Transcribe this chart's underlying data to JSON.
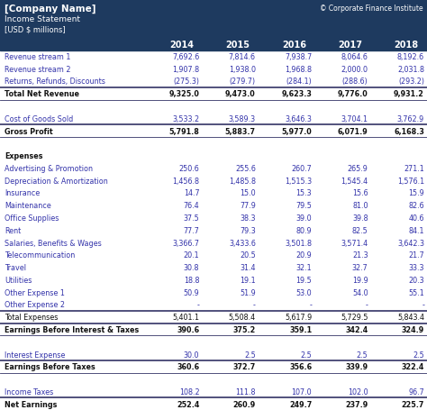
{
  "company_name": "[Company Name]",
  "doc_title": "Income Statement",
  "currency": "[USD $ millions]",
  "copyright": "© Corporate Finance Institute",
  "years": [
    "2014",
    "2015",
    "2016",
    "2017",
    "2018"
  ],
  "header_bg": "#1e3a5f",
  "blue_text": "#3333aa",
  "dark_text": "#111111",
  "line_color": "#333366",
  "rows": [
    {
      "label": "Revenue stream 1",
      "values": [
        "7,692.6",
        "7,814.6",
        "7,938.7",
        "8,064.6",
        "8,192.6"
      ],
      "style": "normal",
      "color": "blue"
    },
    {
      "label": "Revenue stream 2",
      "values": [
        "1,907.8",
        "1,938.0",
        "1,968.8",
        "2,000.0",
        "2,031.8"
      ],
      "style": "normal",
      "color": "blue"
    },
    {
      "label": "Returns, Refunds, Discounts",
      "values": [
        "(275.3)",
        "(279.7)",
        "(284.1)",
        "(288.6)",
        "(293.2)"
      ],
      "style": "normal",
      "color": "blue"
    },
    {
      "label": "Total Net Revenue",
      "values": [
        "9,325.0",
        "9,473.0",
        "9,623.3",
        "9,776.0",
        "9,931.2"
      ],
      "style": "bold_topbot",
      "color": "dark"
    },
    {
      "label": "",
      "values": [
        "",
        "",
        "",
        "",
        ""
      ],
      "style": "spacer",
      "color": "dark"
    },
    {
      "label": "Cost of Goods Sold",
      "values": [
        "3,533.2",
        "3,589.3",
        "3,646.3",
        "3,704.1",
        "3,762.9"
      ],
      "style": "normal",
      "color": "blue"
    },
    {
      "label": "Gross Profit",
      "values": [
        "5,791.8",
        "5,883.7",
        "5,977.0",
        "6,071.9",
        "6,168.3"
      ],
      "style": "bold_topbot",
      "color": "dark"
    },
    {
      "label": "",
      "values": [
        "",
        "",
        "",
        "",
        ""
      ],
      "style": "spacer",
      "color": "dark"
    },
    {
      "label": "Expenses",
      "values": [
        "",
        "",
        "",
        "",
        ""
      ],
      "style": "section_header",
      "color": "dark"
    },
    {
      "label": "Advertising & Promotion",
      "values": [
        "250.6",
        "255.6",
        "260.7",
        "265.9",
        "271.1"
      ],
      "style": "normal",
      "color": "blue"
    },
    {
      "label": "Depreciation & Amortization",
      "values": [
        "1,456.8",
        "1,485.8",
        "1,515.3",
        "1,545.4",
        "1,576.1"
      ],
      "style": "normal",
      "color": "blue"
    },
    {
      "label": "Insurance",
      "values": [
        "14.7",
        "15.0",
        "15.3",
        "15.6",
        "15.9"
      ],
      "style": "normal",
      "color": "blue"
    },
    {
      "label": "Maintenance",
      "values": [
        "76.4",
        "77.9",
        "79.5",
        "81.0",
        "82.6"
      ],
      "style": "normal",
      "color": "blue"
    },
    {
      "label": "Office Supplies",
      "values": [
        "37.5",
        "38.3",
        "39.0",
        "39.8",
        "40.6"
      ],
      "style": "normal",
      "color": "blue"
    },
    {
      "label": "Rent",
      "values": [
        "77.7",
        "79.3",
        "80.9",
        "82.5",
        "84.1"
      ],
      "style": "normal",
      "color": "blue"
    },
    {
      "label": "Salaries, Benefits & Wages",
      "values": [
        "3,366.7",
        "3,433.6",
        "3,501.8",
        "3,571.4",
        "3,642.3"
      ],
      "style": "normal",
      "color": "blue"
    },
    {
      "label": "Telecommunication",
      "values": [
        "20.1",
        "20.5",
        "20.9",
        "21.3",
        "21.7"
      ],
      "style": "normal",
      "color": "blue"
    },
    {
      "label": "Travel",
      "values": [
        "30.8",
        "31.4",
        "32.1",
        "32.7",
        "33.3"
      ],
      "style": "normal",
      "color": "blue"
    },
    {
      "label": "Utilities",
      "values": [
        "18.8",
        "19.1",
        "19.5",
        "19.9",
        "20.3"
      ],
      "style": "normal",
      "color": "blue"
    },
    {
      "label": "Other Expense 1",
      "values": [
        "50.9",
        "51.9",
        "53.0",
        "54.0",
        "55.1"
      ],
      "style": "normal",
      "color": "blue"
    },
    {
      "label": "Other Expense 2",
      "values": [
        "-",
        "-",
        "-",
        "-",
        "-"
      ],
      "style": "normal",
      "color": "blue"
    },
    {
      "label": "Total Expenses",
      "values": [
        "5,401.1",
        "5,508.4",
        "5,617.9",
        "5,729.5",
        "5,843.4"
      ],
      "style": "line_top",
      "color": "dark"
    },
    {
      "label": "Earnings Before Interest & Taxes",
      "values": [
        "390.6",
        "375.2",
        "359.1",
        "342.4",
        "324.9"
      ],
      "style": "bold_topbot",
      "color": "dark"
    },
    {
      "label": "",
      "values": [
        "",
        "",
        "",
        "",
        ""
      ],
      "style": "spacer",
      "color": "dark"
    },
    {
      "label": "Interest Expense",
      "values": [
        "30.0",
        "2.5",
        "2.5",
        "2.5",
        "2.5"
      ],
      "style": "normal",
      "color": "blue"
    },
    {
      "label": "Earnings Before Taxes",
      "values": [
        "360.6",
        "372.7",
        "356.6",
        "339.9",
        "322.4"
      ],
      "style": "bold_topbot",
      "color": "dark"
    },
    {
      "label": "",
      "values": [
        "",
        "",
        "",
        "",
        ""
      ],
      "style": "spacer",
      "color": "dark"
    },
    {
      "label": "Income Taxes",
      "values": [
        "108.2",
        "111.8",
        "107.0",
        "102.0",
        "96.7"
      ],
      "style": "normal",
      "color": "blue"
    },
    {
      "label": "Net Earnings",
      "values": [
        "252.4",
        "260.9",
        "249.7",
        "237.9",
        "225.7"
      ],
      "style": "bold_topbot2",
      "color": "dark"
    }
  ]
}
